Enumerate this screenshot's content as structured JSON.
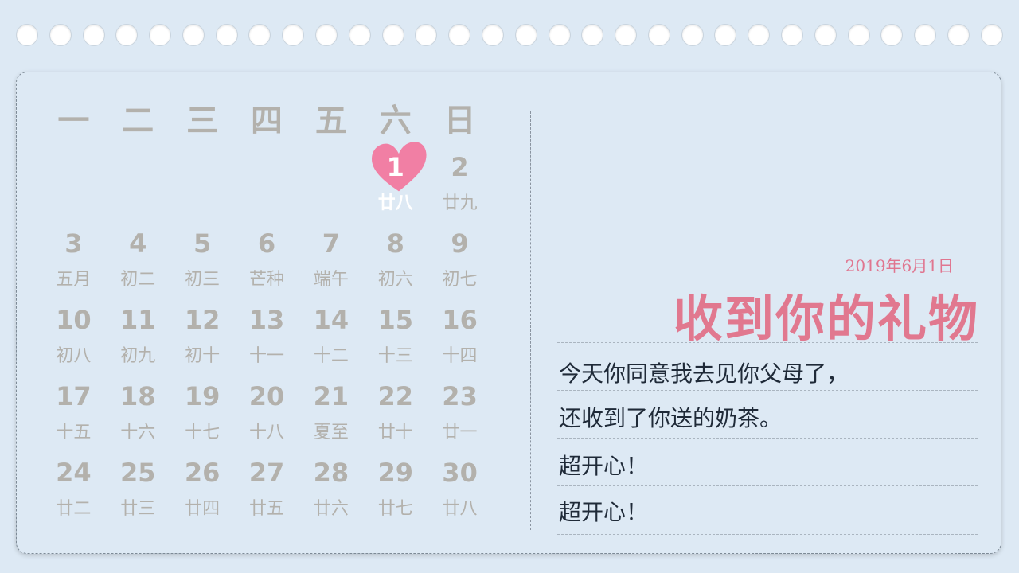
{
  "calendar": {
    "weekdays": [
      "一",
      "二",
      "三",
      "四",
      "五",
      "六",
      "日"
    ],
    "leading_blanks": 5,
    "days": [
      {
        "day": "1",
        "lunar": "廿八",
        "today": true
      },
      {
        "day": "2",
        "lunar": "廿九"
      },
      {
        "day": "3",
        "lunar": "五月"
      },
      {
        "day": "4",
        "lunar": "初二"
      },
      {
        "day": "5",
        "lunar": "初三"
      },
      {
        "day": "6",
        "lunar": "芒种"
      },
      {
        "day": "7",
        "lunar": "端午"
      },
      {
        "day": "8",
        "lunar": "初六"
      },
      {
        "day": "9",
        "lunar": "初七"
      },
      {
        "day": "10",
        "lunar": "初八"
      },
      {
        "day": "11",
        "lunar": "初九"
      },
      {
        "day": "12",
        "lunar": "初十"
      },
      {
        "day": "13",
        "lunar": "十一"
      },
      {
        "day": "14",
        "lunar": "十二"
      },
      {
        "day": "15",
        "lunar": "十三"
      },
      {
        "day": "16",
        "lunar": "十四"
      },
      {
        "day": "17",
        "lunar": "十五"
      },
      {
        "day": "18",
        "lunar": "十六"
      },
      {
        "day": "19",
        "lunar": "十七"
      },
      {
        "day": "20",
        "lunar": "十八"
      },
      {
        "day": "21",
        "lunar": "夏至"
      },
      {
        "day": "22",
        "lunar": "廿十"
      },
      {
        "day": "23",
        "lunar": "廿一"
      },
      {
        "day": "24",
        "lunar": "廿二"
      },
      {
        "day": "25",
        "lunar": "廿三"
      },
      {
        "day": "26",
        "lunar": "廿四"
      },
      {
        "day": "27",
        "lunar": "廿五"
      },
      {
        "day": "28",
        "lunar": "廿六"
      },
      {
        "day": "29",
        "lunar": "廿七"
      },
      {
        "day": "30",
        "lunar": "廿八"
      }
    ],
    "highlight_icon": "heart-icon",
    "highlight_color": "#f17fa4"
  },
  "entry": {
    "date": "2019年6月1日",
    "title": "收到你的礼物",
    "lines": [
      "今天你同意我去见你父母了，",
      "还收到了你送的奶茶。",
      "超开心！",
      "超开心！"
    ]
  },
  "binding_holes_count": 30,
  "colors": {
    "background": "#dde9f4",
    "accent": "#e1788f",
    "muted_text": "#b3b1ac",
    "body_text": "#1f2a38"
  }
}
